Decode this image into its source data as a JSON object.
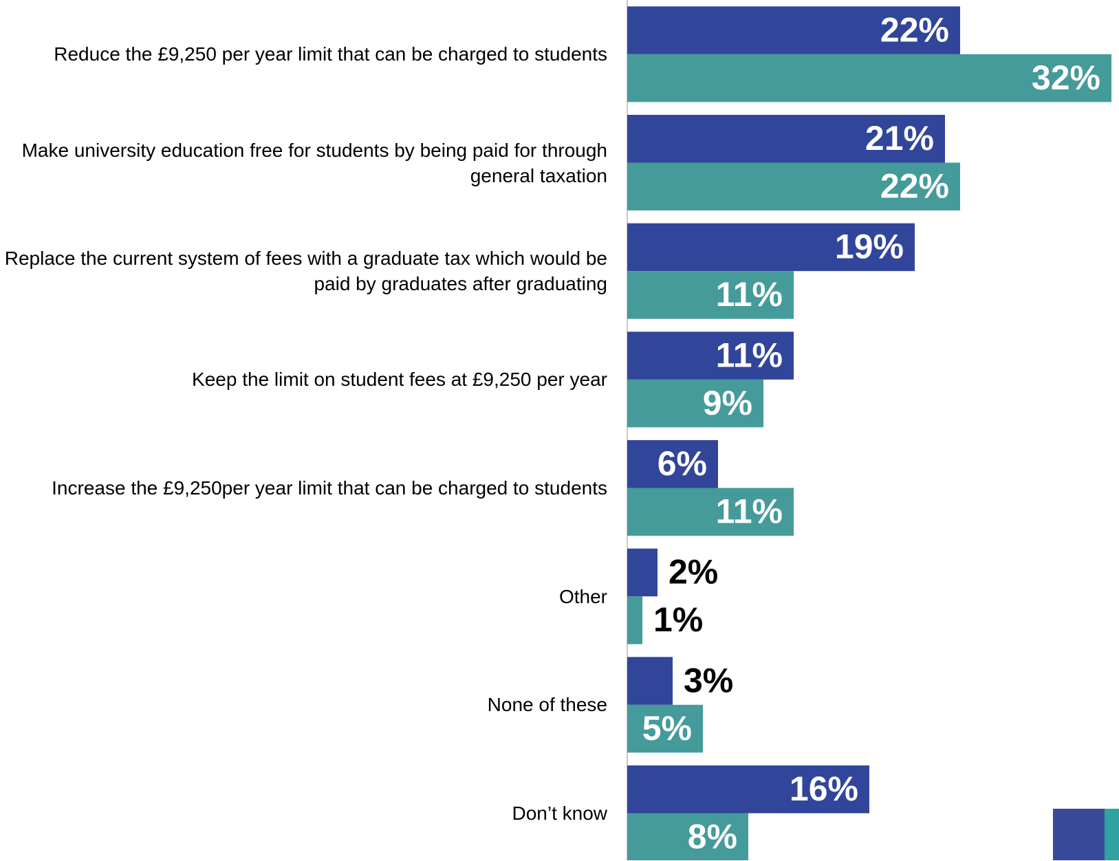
{
  "chart_data": {
    "type": "bar",
    "orientation": "horizontal",
    "categories": [
      "Reduce the £9,250 per year limit that can be charged to students",
      "Make university education free for students by being paid for through general taxation",
      "Replace the current system of fees with a graduate tax which would be paid by graduates after graduating",
      "Keep the limit on student fees at £9,250 per year",
      "Increase the £9,250per year limit that can be charged to students",
      "Other",
      "None of these",
      "Don’t know"
    ],
    "series": [
      {
        "color": "#31459a",
        "values": [
          22,
          21,
          19,
          11,
          6,
          2,
          3,
          16
        ],
        "value_labels": [
          "22%",
          "21%",
          "19%",
          "11%",
          "6%",
          "2%",
          "3%",
          "16%"
        ]
      },
      {
        "color": "#449b9a",
        "values": [
          32,
          22,
          11,
          9,
          11,
          1,
          5,
          8
        ],
        "value_labels": [
          "32%",
          "22%",
          "11%",
          "9%",
          "11%",
          "1%",
          "5%",
          "8%"
        ]
      }
    ],
    "xlim": [
      0,
      32.5
    ]
  }
}
